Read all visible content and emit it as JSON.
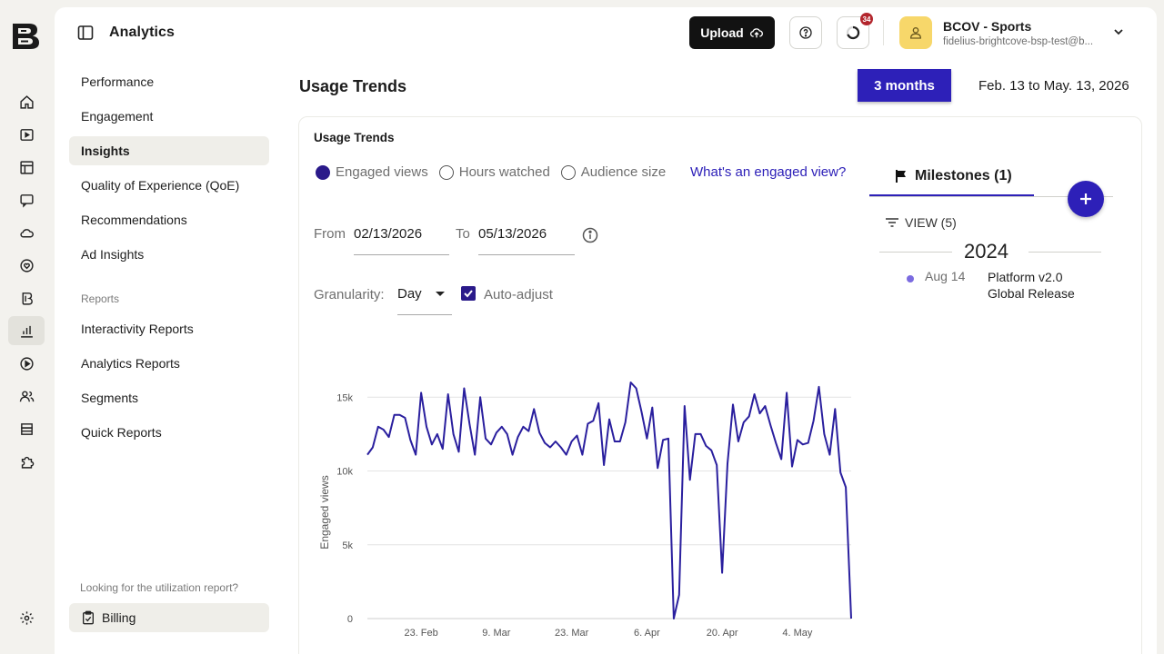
{
  "header": {
    "title": "Analytics",
    "upload_label": "Upload",
    "notification_count": "34",
    "account_name": "BCOV - Sports",
    "account_email": "fidelius-brightcove-bsp-test@b..."
  },
  "rail_icons": [
    "home-icon",
    "video-icon",
    "table-icon",
    "chat-icon",
    "cloud-icon",
    "heart-icon",
    "brand-icon",
    "analytics-icon",
    "play-icon",
    "users-icon",
    "store-icon",
    "puzzle-icon",
    "settings-icon"
  ],
  "subnav": {
    "items": [
      "Performance",
      "Engagement",
      "Insights",
      "Quality of Experience (QoE)",
      "Recommendations",
      "Ad Insights"
    ],
    "active": "Insights",
    "reports_section": "Reports",
    "report_items": [
      "Interactivity Reports",
      "Analytics Reports",
      "Segments",
      "Quick Reports"
    ],
    "util_text": "Looking for the utilization report?",
    "billing_label": "Billing"
  },
  "page": {
    "title": "Usage Trends",
    "range_button": "3 months",
    "range_text": "Feb. 13 to May. 13, 2026"
  },
  "panel": {
    "title": "Usage Trends",
    "metrics": [
      "Engaged views",
      "Hours watched",
      "Audience size"
    ],
    "selected_metric": "Engaged views",
    "help_link": "What's an engaged view?",
    "from_label": "From",
    "from_value": "02/13/2026",
    "to_label": "To",
    "to_value": "05/13/2026",
    "granularity_label": "Granularity:",
    "granularity_value": "Day",
    "auto_adjust_label": "Auto-adjust",
    "auto_adjust_checked": true
  },
  "milestones": {
    "tab_label": "Milestones (1)",
    "view_label": "VIEW (5)",
    "year": "2024",
    "items": [
      {
        "date": "Aug 14",
        "name": "Platform v2.0 Global Release"
      }
    ]
  },
  "colors": {
    "accent": "#2d20b8",
    "line": "#2a1f9e"
  },
  "chart_data": {
    "type": "line",
    "ylabel": "Engaged views",
    "ylim": [
      0,
      16000
    ],
    "y_ticks": [
      {
        "v": 0,
        "label": "0"
      },
      {
        "v": 5000,
        "label": "5k"
      },
      {
        "v": 10000,
        "label": "10k"
      },
      {
        "v": 15000,
        "label": "15k"
      }
    ],
    "x_ticks": [
      "23. Feb",
      "9. Mar",
      "23. Mar",
      "6. Apr",
      "20. Apr",
      "4. May"
    ],
    "x_tick_days": [
      10,
      24,
      38,
      52,
      66,
      80
    ],
    "grid": true,
    "series": [
      {
        "values": [
          11100,
          11600,
          13000,
          12800,
          12300,
          13800,
          13800,
          13600,
          12100,
          11100,
          15300,
          13000,
          11800,
          12500,
          11500,
          15200,
          12500,
          11300,
          15600,
          13200,
          11100,
          15000,
          12200,
          11800,
          12600,
          13000,
          12500,
          11100,
          12300,
          13000,
          12700,
          14200,
          12600,
          11900,
          11600,
          12000,
          11600,
          11100,
          12000,
          12400,
          11100,
          13200,
          13400,
          14600,
          10400,
          13500,
          12000,
          12000,
          13300,
          16000,
          15600,
          14000,
          12200,
          14300,
          10200,
          12100,
          12200,
          0,
          1600,
          14400,
          9400,
          12500,
          12500,
          11700,
          11400,
          10400,
          3100,
          10500,
          14500,
          12000,
          13300,
          13700,
          15200,
          13900,
          14400,
          13100,
          11900,
          10800,
          15300,
          10300,
          12100,
          11800,
          11900,
          13400,
          15700,
          12500,
          11100,
          14200,
          9900,
          8900,
          0
        ]
      }
    ]
  }
}
